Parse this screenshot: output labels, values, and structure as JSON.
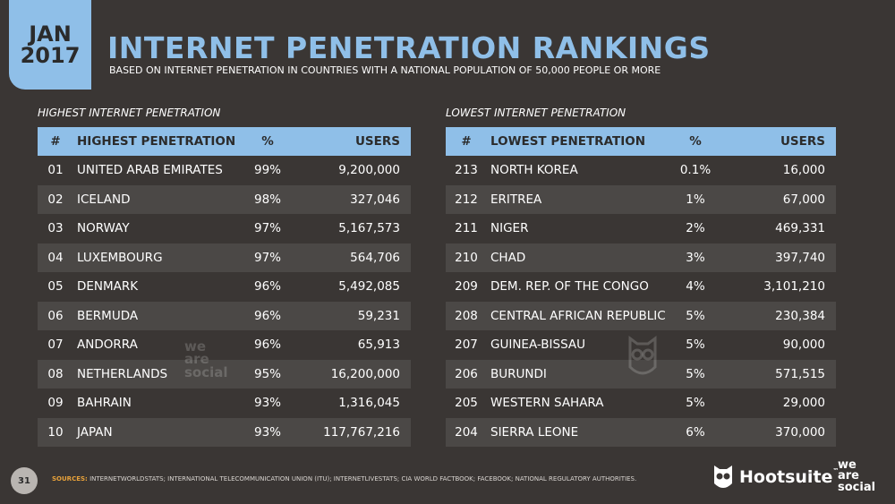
{
  "badge": {
    "month": "JAN",
    "year": "2017"
  },
  "title": "INTERNET PENETRATION RANKINGS",
  "subtitle": "BASED ON INTERNET PENETRATION IN COUNTRIES WITH A NATIONAL POPULATION OF 50,000 PEOPLE OR MORE",
  "highest": {
    "label": "HIGHEST INTERNET PENETRATION",
    "headers": {
      "num": "#",
      "name": "HIGHEST PENETRATION",
      "pct": "%",
      "users": "USERS"
    },
    "rows": [
      {
        "num": "01",
        "name": "UNITED ARAB EMIRATES",
        "pct": "99%",
        "users": "9,200,000"
      },
      {
        "num": "02",
        "name": "ICELAND",
        "pct": "98%",
        "users": "327,046"
      },
      {
        "num": "03",
        "name": "NORWAY",
        "pct": "97%",
        "users": "5,167,573"
      },
      {
        "num": "04",
        "name": "LUXEMBOURG",
        "pct": "97%",
        "users": "564,706"
      },
      {
        "num": "05",
        "name": "DENMARK",
        "pct": "96%",
        "users": "5,492,085"
      },
      {
        "num": "06",
        "name": "BERMUDA",
        "pct": "96%",
        "users": "59,231"
      },
      {
        "num": "07",
        "name": "ANDORRA",
        "pct": "96%",
        "users": "65,913"
      },
      {
        "num": "08",
        "name": "NETHERLANDS",
        "pct": "95%",
        "users": "16,200,000"
      },
      {
        "num": "09",
        "name": "BAHRAIN",
        "pct": "93%",
        "users": "1,316,045"
      },
      {
        "num": "10",
        "name": "JAPAN",
        "pct": "93%",
        "users": "117,767,216"
      }
    ]
  },
  "lowest": {
    "label": "LOWEST INTERNET PENETRATION",
    "headers": {
      "num": "#",
      "name": "LOWEST PENETRATION",
      "pct": "%",
      "users": "USERS"
    },
    "rows": [
      {
        "num": "213",
        "name": "NORTH KOREA",
        "pct": "0.1%",
        "users": "16,000"
      },
      {
        "num": "212",
        "name": "ERITREA",
        "pct": "1%",
        "users": "67,000"
      },
      {
        "num": "211",
        "name": "NIGER",
        "pct": "2%",
        "users": "469,331"
      },
      {
        "num": "210",
        "name": "CHAD",
        "pct": "3%",
        "users": "397,740"
      },
      {
        "num": "209",
        "name": "DEM. REP. OF THE CONGO",
        "pct": "4%",
        "users": "3,101,210"
      },
      {
        "num": "208",
        "name": "CENTRAL AFRICAN REPUBLIC",
        "pct": "5%",
        "users": "230,384"
      },
      {
        "num": "207",
        "name": "GUINEA-BISSAU",
        "pct": "5%",
        "users": "90,000"
      },
      {
        "num": "206",
        "name": "BURUNDI",
        "pct": "5%",
        "users": "571,515"
      },
      {
        "num": "205",
        "name": "WESTERN SAHARA",
        "pct": "5%",
        "users": "29,000"
      },
      {
        "num": "204",
        "name": "SIERRA LEONE",
        "pct": "6%",
        "users": "370,000"
      }
    ]
  },
  "footer": {
    "page_number": "31",
    "sources_label": "SOURCES:",
    "sources_text": "INTERNETWORLDSTATS; INTERNATIONAL TELECOMMUNICATION UNION (ITU); INTERNETLIVESTATS; CIA WORLD FACTBOOK; FACEBOOK; NATIONAL REGULATORY AUTHORITIES.",
    "hootsuite": "Hootsuite",
    "hootsuite_tm": "™",
    "was_line1": "we",
    "was_line2": "are",
    "was_line3": "social"
  },
  "colors": {
    "accent": "#8fbfe8",
    "background": "#3a3634",
    "row_alt": "#4b4846",
    "sources_label": "#e8a23a"
  }
}
